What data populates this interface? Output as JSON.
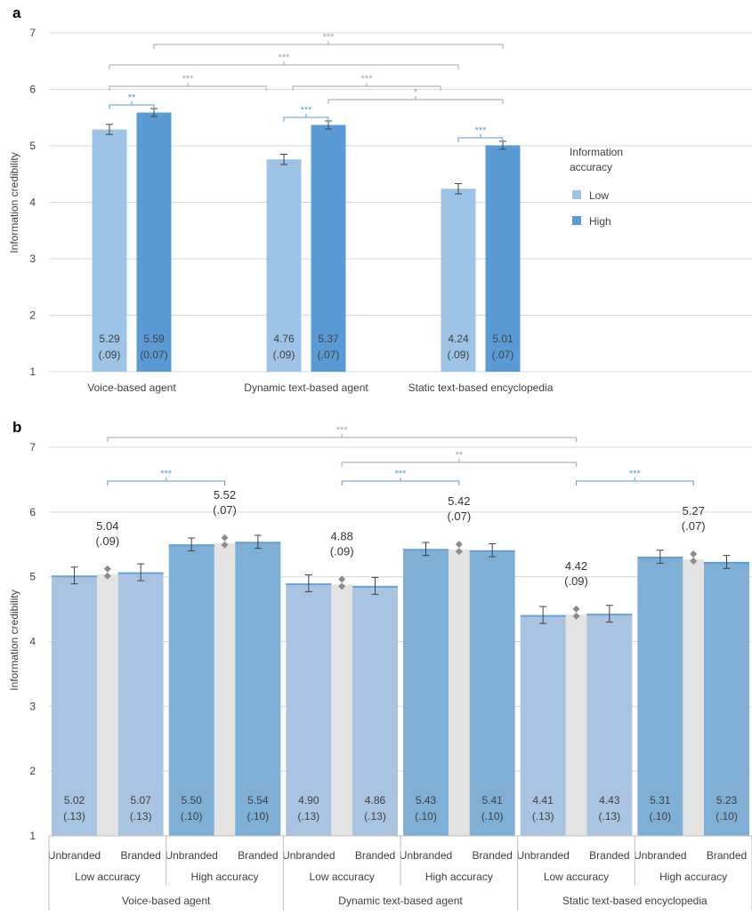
{
  "chart_data": [
    {
      "panel_label": "a",
      "type": "bar",
      "ylabel": "Information credibility",
      "ylim": [
        1,
        7
      ],
      "yticks": [
        1,
        2,
        3,
        4,
        5,
        6,
        7
      ],
      "grid": true,
      "categories": [
        "Voice-based agent",
        "Dynamic text-based agent",
        "Static text-based encyclopedia"
      ],
      "legend": {
        "title": "Information accuracy",
        "placement": "right"
      },
      "series": [
        {
          "name": "Low",
          "color": "#9dc3e6",
          "values": [
            5.29,
            4.76,
            4.24
          ],
          "se": [
            0.09,
            0.09,
            0.09
          ],
          "labels": [
            "5.29",
            "4.76",
            "4.24"
          ],
          "se_labels": [
            "(.09)",
            "(.09)",
            "(.09)"
          ]
        },
        {
          "name": "High",
          "color": "#5b9bd5",
          "values": [
            5.59,
            5.37,
            5.01
          ],
          "se": [
            0.07,
            0.07,
            0.07
          ],
          "labels": [
            "5.59",
            "5.37",
            "5.01"
          ],
          "se_labels": [
            "(0.07)",
            "(.07)",
            "(.07)"
          ]
        }
      ],
      "significance": [
        {
          "from": "Voice-based agent High",
          "to": "Static text-based encyclopedia High",
          "stars": "***",
          "color": "#a6a6a6"
        },
        {
          "from": "Voice-based agent Low",
          "to": "Static text-based encyclopedia Low",
          "stars": "***",
          "color": "#a6a6a6"
        },
        {
          "from": "Voice-based agent Low",
          "to": "Dynamic text-based agent Low",
          "stars": "***",
          "color": "#a6a6a6"
        },
        {
          "from": "Dynamic text-based agent Low",
          "to": "Static text-based encyclopedia Low",
          "stars": "***",
          "color": "#a6a6a6"
        },
        {
          "from": "Dynamic text-based agent High",
          "to": "Static text-based encyclopedia High",
          "stars": "*",
          "color": "#a6a6a6"
        },
        {
          "from": "Voice-based agent Low",
          "to": "Voice-based agent High",
          "stars": "**",
          "color": "#5b9bd5"
        },
        {
          "from": "Dynamic text-based agent Low",
          "to": "Dynamic text-based agent High",
          "stars": "***",
          "color": "#5b9bd5"
        },
        {
          "from": "Static text-based encyclopedia Low",
          "to": "Static text-based encyclopedia High",
          "stars": "***",
          "color": "#5b9bd5"
        }
      ]
    },
    {
      "panel_label": "b",
      "type": "bar",
      "ylabel": "Information credibility",
      "ylim": [
        1,
        7
      ],
      "yticks": [
        1,
        2,
        3,
        4,
        5,
        6,
        7
      ],
      "grid": true,
      "agents": [
        "Voice-based agent",
        "Dynamic text-based agent",
        "Static text-based encyclopedia"
      ],
      "accuracy_levels": [
        "Low accuracy",
        "High accuracy"
      ],
      "branding": [
        "Unbranded",
        "Branded"
      ],
      "colors": {
        "low": "#a9c4e0",
        "high": "#7fafd5",
        "top_edge": "#5b9bd5",
        "pair_background": "#e3e3e3",
        "diamond": "#8c8c8c"
      },
      "bars": [
        {
          "agent": 0,
          "accuracy": 0,
          "branding": 0,
          "value": 5.02,
          "label": "5.02",
          "se_label": "(.13)",
          "se": 0.13
        },
        {
          "agent": 0,
          "accuracy": 0,
          "branding": 1,
          "value": 5.07,
          "label": "5.07",
          "se_label": "(.13)",
          "se": 0.13
        },
        {
          "agent": 0,
          "accuracy": 1,
          "branding": 0,
          "value": 5.5,
          "label": "5.50",
          "se_label": "(.10)",
          "se": 0.1
        },
        {
          "agent": 0,
          "accuracy": 1,
          "branding": 1,
          "value": 5.54,
          "label": "5.54",
          "se_label": "(.10)",
          "se": 0.1
        },
        {
          "agent": 1,
          "accuracy": 0,
          "branding": 0,
          "value": 4.9,
          "label": "4.90",
          "se_label": "(.13)",
          "se": 0.13
        },
        {
          "agent": 1,
          "accuracy": 0,
          "branding": 1,
          "value": 4.86,
          "label": "4.86",
          "se_label": "(.13)",
          "se": 0.13
        },
        {
          "agent": 1,
          "accuracy": 1,
          "branding": 0,
          "value": 5.43,
          "label": "5.43",
          "se_label": "(.10)",
          "se": 0.1
        },
        {
          "agent": 1,
          "accuracy": 1,
          "branding": 1,
          "value": 5.41,
          "label": "5.41",
          "se_label": "(.10)",
          "se": 0.1
        },
        {
          "agent": 2,
          "accuracy": 0,
          "branding": 0,
          "value": 4.41,
          "label": "4.41",
          "se_label": "(.13)",
          "se": 0.13
        },
        {
          "agent": 2,
          "accuracy": 0,
          "branding": 1,
          "value": 4.43,
          "label": "4.43",
          "se_label": "(.13)",
          "se": 0.13
        },
        {
          "agent": 2,
          "accuracy": 1,
          "branding": 0,
          "value": 5.31,
          "label": "5.31",
          "se_label": "(.10)",
          "se": 0.1
        },
        {
          "agent": 2,
          "accuracy": 1,
          "branding": 1,
          "value": 5.23,
          "label": "5.23",
          "se_label": "(.10)",
          "se": 0.1
        }
      ],
      "pair_means": [
        {
          "value": 5.04,
          "label": "5.04",
          "se_label": "(.09)"
        },
        {
          "value": 5.52,
          "label": "5.52",
          "se_label": "(.07)"
        },
        {
          "value": 4.88,
          "label": "4.88",
          "se_label": "(.09)"
        },
        {
          "value": 5.42,
          "label": "5.42",
          "se_label": "(.07)"
        },
        {
          "value": 4.42,
          "label": "4.42",
          "se_label": "(.09)"
        },
        {
          "value": 5.27,
          "label": "5.27",
          "se_label": "(.07)"
        }
      ],
      "significance": [
        {
          "from": "Voice-based agent Low accuracy",
          "to": "Static text-based encyclopedia Low accuracy",
          "stars": "***",
          "color": "#a6a6a6"
        },
        {
          "from": "Dynamic text-based agent Low accuracy",
          "to": "Static text-based encyclopedia Low accuracy",
          "stars": "**",
          "color": "#a6a6a6"
        },
        {
          "from": "Voice-based agent Low accuracy",
          "to": "Voice-based agent High accuracy",
          "stars": "***",
          "color": "#5b9bd5"
        },
        {
          "from": "Dynamic text-based agent Low accuracy",
          "to": "Dynamic text-based agent High accuracy",
          "stars": "***",
          "color": "#5b9bd5"
        },
        {
          "from": "Static text-based encyclopedia Low accuracy",
          "to": "Static text-based encyclopedia High accuracy",
          "stars": "***",
          "color": "#5b9bd5"
        }
      ]
    }
  ]
}
